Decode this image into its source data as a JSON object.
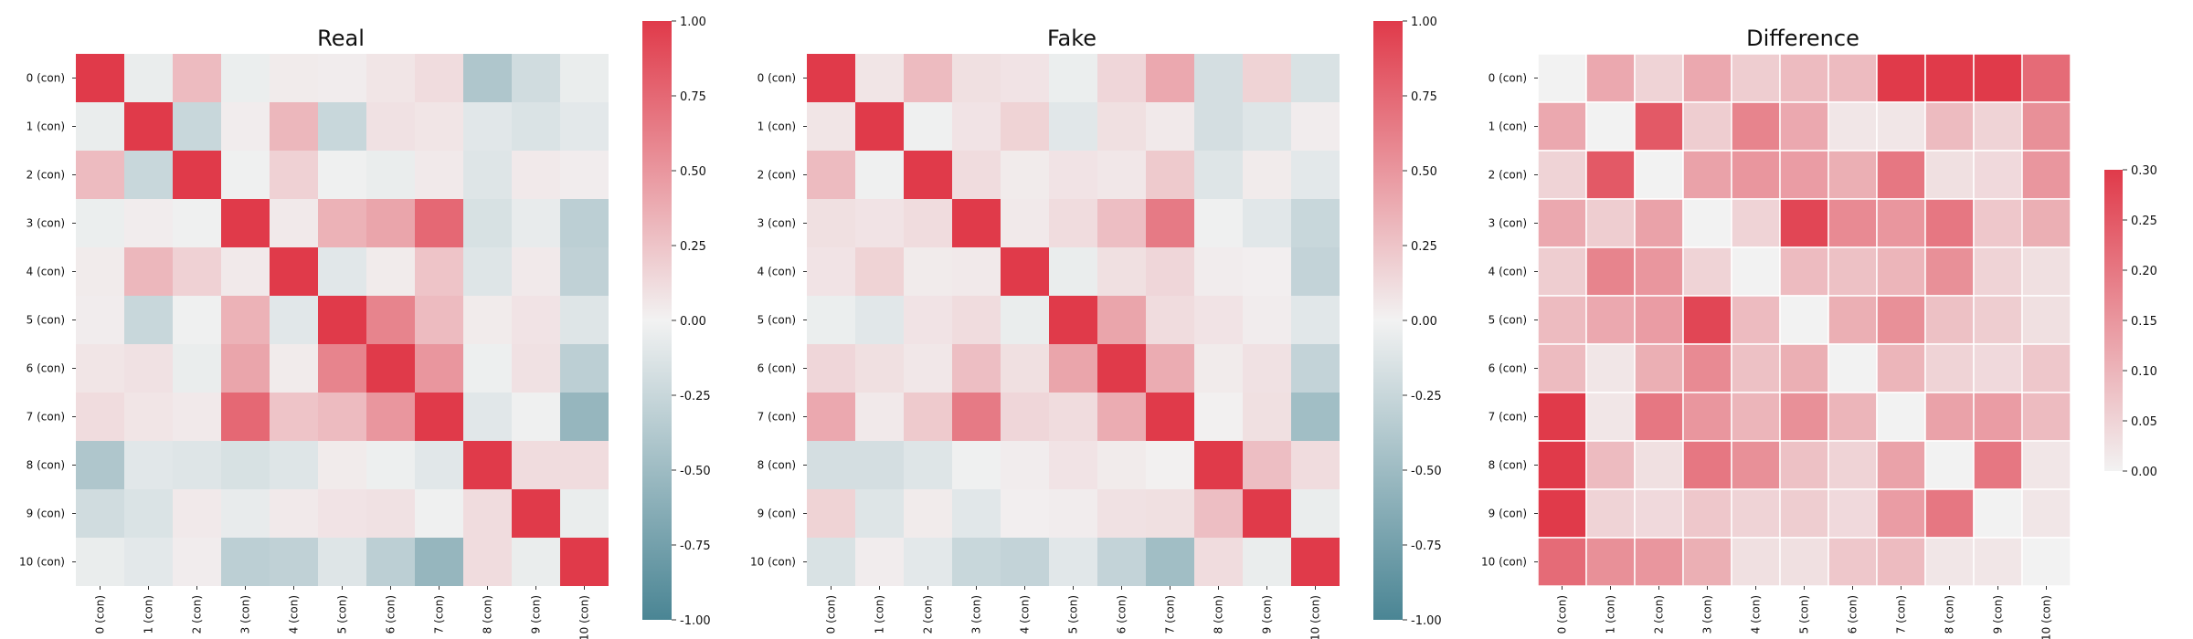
{
  "figure": {
    "palette": {
      "negative": "#4a8594",
      "neutral": "#f2f2f2",
      "positive": "#e03a4a"
    }
  },
  "chart_data": [
    {
      "type": "heatmap",
      "title": "Real",
      "categories": [
        "0 (con)",
        "1 (con)",
        "2 (con)",
        "3 (con)",
        "4 (con)",
        "5 (con)",
        "6 (con)",
        "7 (con)",
        "8 (con)",
        "9 (con)",
        "10 (con)"
      ],
      "values": [
        [
          1.0,
          -0.05,
          0.3,
          -0.04,
          0.04,
          0.03,
          0.07,
          0.12,
          -0.4,
          -0.2,
          -0.05
        ],
        [
          -0.05,
          1.0,
          -0.25,
          0.03,
          0.32,
          -0.25,
          0.09,
          0.07,
          -0.1,
          -0.14,
          -0.09
        ],
        [
          0.3,
          -0.25,
          1.0,
          -0.02,
          0.18,
          -0.02,
          -0.05,
          0.05,
          -0.12,
          0.05,
          0.03
        ],
        [
          -0.04,
          0.03,
          -0.02,
          1.0,
          0.05,
          0.35,
          0.42,
          0.75,
          -0.16,
          -0.06,
          -0.32
        ],
        [
          0.04,
          0.32,
          0.18,
          0.05,
          1.0,
          -0.1,
          0.04,
          0.25,
          -0.12,
          0.05,
          -0.3
        ],
        [
          0.03,
          -0.25,
          -0.02,
          0.35,
          -0.1,
          1.0,
          0.6,
          0.3,
          0.04,
          0.08,
          -0.12
        ],
        [
          0.07,
          0.09,
          -0.05,
          0.42,
          0.04,
          0.6,
          1.0,
          0.5,
          -0.03,
          0.09,
          -0.32
        ],
        [
          0.12,
          0.07,
          0.05,
          0.75,
          0.25,
          0.3,
          0.5,
          1.0,
          -0.1,
          -0.02,
          -0.55
        ],
        [
          -0.4,
          -0.1,
          -0.12,
          -0.16,
          -0.12,
          0.04,
          -0.03,
          -0.1,
          1.0,
          0.12,
          0.12
        ],
        [
          -0.2,
          -0.14,
          0.05,
          -0.06,
          0.05,
          0.08,
          0.09,
          -0.02,
          0.12,
          1.0,
          -0.05
        ],
        [
          -0.05,
          -0.09,
          0.03,
          -0.32,
          -0.3,
          -0.12,
          -0.32,
          -0.55,
          0.12,
          -0.05,
          1.0
        ]
      ],
      "vmin": -1.0,
      "vmax": 1.0,
      "colorbar_ticks": [
        "-1.00",
        "-0.75",
        "-0.50",
        "-0.25",
        "0.00",
        "0.25",
        "0.50",
        "0.75",
        "1.00"
      ]
    },
    {
      "type": "heatmap",
      "title": "Fake",
      "categories": [
        "0 (con)",
        "1 (con)",
        "2 (con)",
        "3 (con)",
        "4 (con)",
        "5 (con)",
        "6 (con)",
        "7 (con)",
        "8 (con)",
        "9 (con)",
        "10 (con)"
      ],
      "values": [
        [
          1.0,
          0.07,
          0.3,
          0.1,
          0.08,
          -0.04,
          0.15,
          0.4,
          -0.18,
          0.17,
          -0.15
        ],
        [
          0.07,
          1.0,
          -0.02,
          0.08,
          0.17,
          -0.1,
          0.1,
          0.05,
          -0.18,
          -0.12,
          0.03
        ],
        [
          0.3,
          -0.02,
          1.0,
          0.12,
          0.04,
          0.08,
          0.06,
          0.22,
          -0.12,
          0.04,
          -0.09
        ],
        [
          0.1,
          0.08,
          0.12,
          1.0,
          0.05,
          0.12,
          0.28,
          0.65,
          -0.02,
          -0.1,
          -0.25
        ],
        [
          0.08,
          0.17,
          0.04,
          0.05,
          1.0,
          -0.05,
          0.1,
          0.15,
          0.03,
          0.02,
          -0.28
        ],
        [
          -0.04,
          -0.1,
          0.08,
          0.12,
          -0.05,
          1.0,
          0.42,
          0.12,
          0.08,
          0.03,
          -0.1
        ],
        [
          0.15,
          0.1,
          0.06,
          0.28,
          0.1,
          0.42,
          1.0,
          0.38,
          0.04,
          0.09,
          -0.28
        ],
        [
          0.4,
          0.05,
          0.22,
          0.65,
          0.15,
          0.12,
          0.38,
          1.0,
          0.01,
          0.1,
          -0.48
        ],
        [
          -0.18,
          -0.18,
          -0.12,
          -0.02,
          0.03,
          0.08,
          0.04,
          0.01,
          1.0,
          0.28,
          0.12
        ],
        [
          0.17,
          -0.12,
          0.04,
          -0.1,
          0.02,
          0.03,
          0.09,
          0.1,
          0.28,
          1.0,
          -0.05
        ],
        [
          -0.15,
          0.03,
          -0.09,
          -0.25,
          -0.28,
          -0.1,
          -0.28,
          -0.48,
          0.12,
          -0.05,
          1.0
        ]
      ],
      "vmin": -1.0,
      "vmax": 1.0,
      "colorbar_ticks": [
        "-1.00",
        "-0.75",
        "-0.50",
        "-0.25",
        "0.00",
        "0.25",
        "0.50",
        "0.75",
        "1.00"
      ]
    },
    {
      "type": "heatmap",
      "title": "Difference",
      "categories": [
        "0 (con)",
        "1 (con)",
        "2 (con)",
        "3 (con)",
        "4 (con)",
        "5 (con)",
        "6 (con)",
        "7 (con)",
        "8 (con)",
        "9 (con)",
        "10 (con)"
      ],
      "values": [
        [
          0.0,
          0.12,
          0.05,
          0.12,
          0.06,
          0.09,
          0.09,
          0.3,
          0.3,
          0.3,
          0.22
        ],
        [
          0.12,
          0.0,
          0.25,
          0.06,
          0.18,
          0.12,
          0.02,
          0.02,
          0.09,
          0.05,
          0.16
        ],
        [
          0.05,
          0.25,
          0.0,
          0.13,
          0.15,
          0.14,
          0.11,
          0.2,
          0.03,
          0.04,
          0.15
        ],
        [
          0.12,
          0.06,
          0.13,
          0.0,
          0.05,
          0.28,
          0.17,
          0.15,
          0.2,
          0.07,
          0.11
        ],
        [
          0.06,
          0.18,
          0.15,
          0.05,
          0.0,
          0.09,
          0.08,
          0.1,
          0.16,
          0.05,
          0.03
        ],
        [
          0.09,
          0.12,
          0.14,
          0.28,
          0.09,
          0.0,
          0.11,
          0.16,
          0.08,
          0.06,
          0.03
        ],
        [
          0.09,
          0.02,
          0.11,
          0.17,
          0.08,
          0.11,
          0.0,
          0.1,
          0.05,
          0.04,
          0.07
        ],
        [
          0.3,
          0.02,
          0.2,
          0.15,
          0.1,
          0.16,
          0.1,
          0.0,
          0.13,
          0.14,
          0.09
        ],
        [
          0.3,
          0.09,
          0.03,
          0.2,
          0.16,
          0.08,
          0.05,
          0.13,
          0.0,
          0.2,
          0.02
        ],
        [
          0.3,
          0.05,
          0.04,
          0.07,
          0.05,
          0.06,
          0.04,
          0.14,
          0.2,
          0.0,
          0.02
        ],
        [
          0.22,
          0.16,
          0.15,
          0.11,
          0.03,
          0.03,
          0.07,
          0.09,
          0.02,
          0.02,
          0.0
        ]
      ],
      "vmin": 0.0,
      "vmax": 0.3,
      "colorbar_ticks": [
        "0.00",
        "0.05",
        "0.10",
        "0.15",
        "0.20",
        "0.25",
        "0.30"
      ]
    }
  ]
}
